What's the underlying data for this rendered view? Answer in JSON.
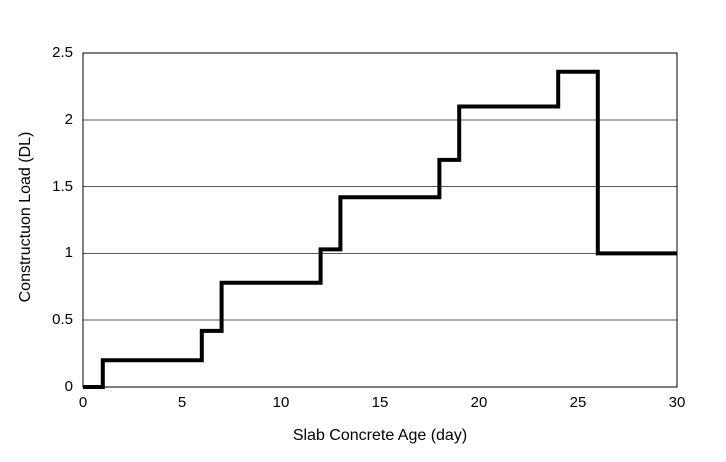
{
  "chart_data": {
    "type": "line",
    "subtype": "step",
    "title": "",
    "xlabel": "Slab Concrete Age (day)",
    "ylabel": "Constructuon Load (DL)",
    "xlim": [
      0,
      30
    ],
    "ylim": [
      0,
      2.5
    ],
    "xticks": [
      0,
      5,
      10,
      15,
      20,
      25,
      30
    ],
    "yticks": [
      0,
      0.5,
      1,
      1.5,
      2,
      2.5
    ],
    "xtick_labels": [
      "0",
      "5",
      "10",
      "15",
      "20",
      "25",
      "30"
    ],
    "ytick_labels": [
      "0",
      "0.5",
      "1",
      "1.5",
      "2",
      "2.5"
    ],
    "grid": "horizontal",
    "legend": "none",
    "line_color": "#000000",
    "line_width": 4,
    "gridline_color": "#595959",
    "frame_color": "#000000",
    "background_color": "#ffffff",
    "segments": [
      {
        "from_day": 0,
        "to_day": 1,
        "load": 0
      },
      {
        "from_day": 1,
        "to_day": 6,
        "load": 0.2
      },
      {
        "from_day": 6,
        "to_day": 7,
        "load": 0.42
      },
      {
        "from_day": 7,
        "to_day": 12,
        "load": 0.78
      },
      {
        "from_day": 12,
        "to_day": 13,
        "load": 1.03
      },
      {
        "from_day": 13,
        "to_day": 18,
        "load": 1.42
      },
      {
        "from_day": 18,
        "to_day": 19,
        "load": 1.7
      },
      {
        "from_day": 19,
        "to_day": 24,
        "load": 2.1
      },
      {
        "from_day": 24,
        "to_day": 26,
        "load": 2.36
      },
      {
        "from_day": 26,
        "to_day": 30,
        "load": 1.0
      }
    ]
  }
}
